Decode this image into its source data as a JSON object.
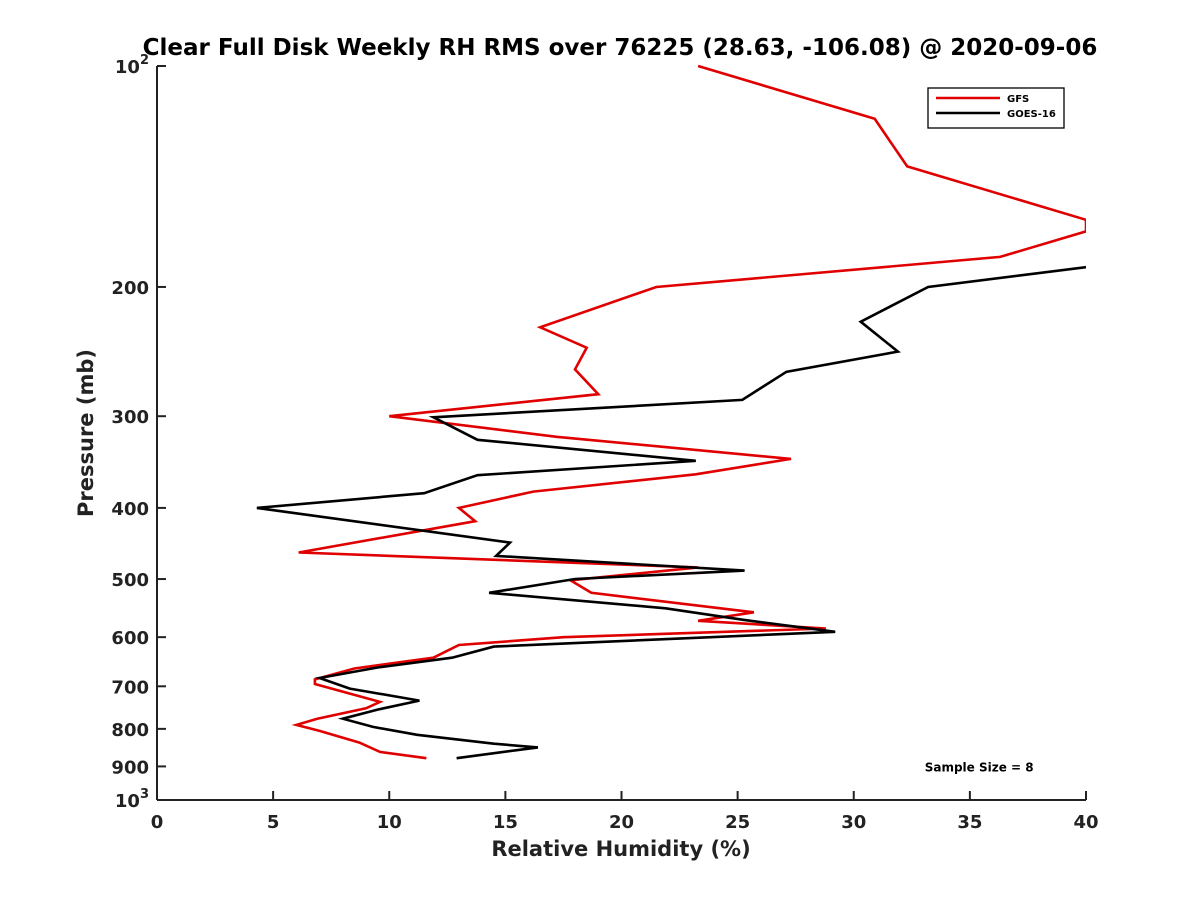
{
  "chart_data": {
    "type": "line",
    "title": "Clear Full Disk Weekly RH RMS over 76225 (28.63, -106.08) @ 2020-09-06",
    "xlabel": "Relative Humidity (%)",
    "ylabel": "Pressure (mb)",
    "xlim": [
      0,
      40
    ],
    "ylim": [
      100,
      1000
    ],
    "yscale": "log",
    "yreversed": true,
    "grid": false,
    "legend_position": "top-right",
    "x_ticks": [
      0,
      5,
      10,
      15,
      20,
      25,
      30,
      35,
      40
    ],
    "x_tick_labels": [
      "0",
      "5",
      "10",
      "15",
      "20",
      "25",
      "30",
      "35",
      "40"
    ],
    "y_ticks": [
      100,
      200,
      300,
      400,
      500,
      600,
      700,
      800,
      900,
      1000
    ],
    "y_tick_labels": [
      {
        "base": "10",
        "exp": "2"
      },
      {
        "base": "200",
        "exp": ""
      },
      {
        "base": "300",
        "exp": ""
      },
      {
        "base": "400",
        "exp": ""
      },
      {
        "base": "500",
        "exp": ""
      },
      {
        "base": "600",
        "exp": ""
      },
      {
        "base": "700",
        "exp": ""
      },
      {
        "base": "800",
        "exp": ""
      },
      {
        "base": "900",
        "exp": ""
      },
      {
        "base": "10",
        "exp": "3"
      }
    ],
    "series": [
      {
        "name": "GFS",
        "color": "#e00000",
        "points": [
          [
            23.3,
            100
          ],
          [
            30.9,
            118
          ],
          [
            32.3,
            137
          ],
          [
            40.0,
            162
          ],
          [
            40.0,
            168
          ],
          [
            36.3,
            182
          ],
          [
            21.5,
            200
          ],
          [
            16.5,
            227
          ],
          [
            18.5,
            242
          ],
          [
            18.0,
            259
          ],
          [
            19.0,
            280
          ],
          [
            10.0,
            300
          ],
          [
            17.2,
            320
          ],
          [
            27.3,
            343
          ],
          [
            23.2,
            360
          ],
          [
            16.2,
            380
          ],
          [
            13.0,
            400
          ],
          [
            13.7,
            417
          ],
          [
            6.1,
            460
          ],
          [
            23.3,
            482
          ],
          [
            17.8,
            502
          ],
          [
            18.7,
            522
          ],
          [
            25.7,
            555
          ],
          [
            23.3,
            570
          ],
          [
            28.8,
            584
          ],
          [
            17.5,
            600
          ],
          [
            13.0,
            615
          ],
          [
            11.9,
            640
          ],
          [
            8.5,
            662
          ],
          [
            6.8,
            685
          ],
          [
            6.8,
            695
          ],
          [
            9.6,
            735
          ],
          [
            9.0,
            750
          ],
          [
            6.9,
            775
          ],
          [
            6.0,
            790
          ],
          [
            7.0,
            805
          ],
          [
            8.7,
            835
          ],
          [
            9.6,
            860
          ],
          [
            11.6,
            877
          ]
        ]
      },
      {
        "name": "GOES-16",
        "color": "#000000",
        "points": [
          [
            40.0,
            188
          ],
          [
            33.2,
            200
          ],
          [
            30.3,
            223
          ],
          [
            31.9,
            245
          ],
          [
            27.1,
            261
          ],
          [
            25.2,
            285
          ],
          [
            11.9,
            301
          ],
          [
            13.8,
            323
          ],
          [
            23.2,
            345
          ],
          [
            13.8,
            361
          ],
          [
            11.5,
            382
          ],
          [
            4.3,
            400
          ],
          [
            15.2,
            446
          ],
          [
            14.6,
            465
          ],
          [
            25.3,
            487
          ],
          [
            18.0,
            500
          ],
          [
            14.3,
            522
          ],
          [
            21.9,
            548
          ],
          [
            25.2,
            568
          ],
          [
            29.2,
            590
          ],
          [
            14.5,
            618
          ],
          [
            12.7,
            640
          ],
          [
            9.5,
            660
          ],
          [
            7.0,
            682
          ],
          [
            8.3,
            705
          ],
          [
            11.3,
            732
          ],
          [
            9.5,
            753
          ],
          [
            8.0,
            775
          ],
          [
            9.3,
            795
          ],
          [
            11.2,
            815
          ],
          [
            14.5,
            838
          ],
          [
            16.4,
            848
          ],
          [
            12.9,
            877
          ]
        ]
      }
    ],
    "annotations": [
      {
        "text": "Sample Size = 8",
        "x": 35.4,
        "y": 900
      }
    ]
  }
}
